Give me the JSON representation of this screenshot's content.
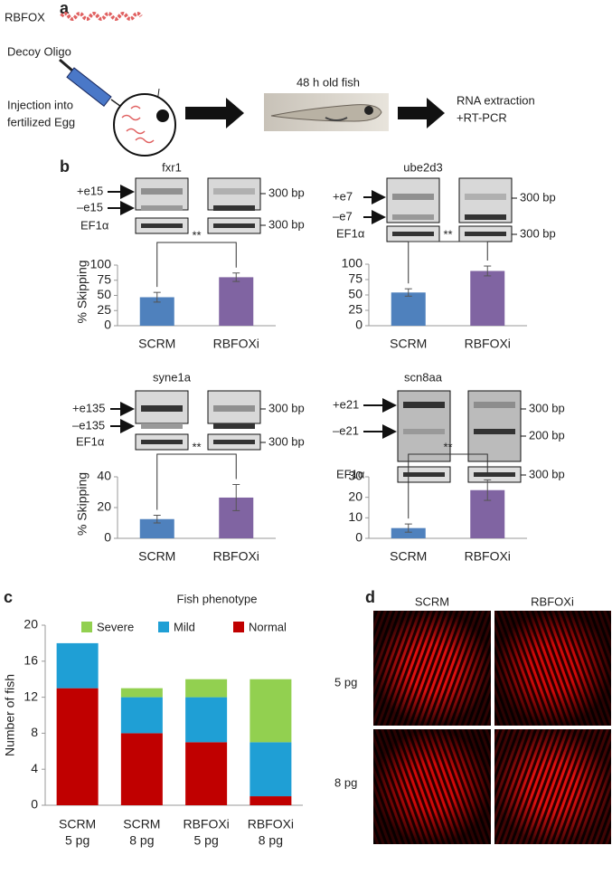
{
  "panel_labels": [
    "a",
    "b",
    "c",
    "d"
  ],
  "schematic": {
    "protein": "RBFOX",
    "oligo": "Decoy Oligo",
    "injection": [
      "Injection into",
      "fertilized Egg"
    ],
    "fish": "48 h old fish",
    "readout": [
      "RNA extraction",
      "+RT-PCR"
    ]
  },
  "gels": [
    {
      "upper": "+e15",
      "lower": "–e15",
      "control": "EF1α",
      "sizes": [
        "300 bp",
        "300 bp"
      ]
    },
    {
      "upper": "+e7",
      "lower": "–e7",
      "control": "EF1α",
      "sizes": [
        "300 bp",
        "300 bp"
      ]
    },
    {
      "upper": "+e135",
      "lower": "–e135",
      "control": "EF1α",
      "sizes": [
        "300 bp",
        "300 bp"
      ]
    },
    {
      "upper": "+e21",
      "lower": "–e21",
      "control": "EF1α",
      "sizes": [
        "300 bp",
        "200 bp",
        "300 bp"
      ]
    }
  ],
  "microscopy": {
    "columns": [
      "SCRM",
      "RBFOXi"
    ],
    "rows": [
      "5 pg",
      "8 pg"
    ]
  },
  "chart_data": [
    {
      "type": "bar",
      "title": "fxr1",
      "ylabel": "% Skipping",
      "categories": [
        "SCRM",
        "RBFOXi"
      ],
      "values": [
        47,
        80
      ],
      "errors": [
        8,
        7
      ],
      "colors": [
        "#4f81bd",
        "#8064a2"
      ],
      "ylim": [
        0,
        100
      ],
      "yticks": [
        0,
        25,
        50,
        75,
        100
      ],
      "annotation": "**"
    },
    {
      "type": "bar",
      "title": "ube2d3",
      "categories": [
        "SCRM",
        "RBFOXi"
      ],
      "values": [
        54,
        89
      ],
      "errors": [
        6,
        8
      ],
      "colors": [
        "#4f81bd",
        "#8064a2"
      ],
      "ylim": [
        0,
        100
      ],
      "yticks": [
        0,
        25,
        50,
        75,
        100
      ],
      "annotation": "**"
    },
    {
      "type": "bar",
      "title": "syne1a",
      "ylabel": "% Skipping",
      "categories": [
        "SCRM",
        "RBFOXi"
      ],
      "values": [
        12.5,
        26.5
      ],
      "errors": [
        2.5,
        8.5
      ],
      "colors": [
        "#4f81bd",
        "#8064a2"
      ],
      "ylim": [
        0,
        40
      ],
      "yticks": [
        0,
        20,
        40
      ],
      "annotation": "**"
    },
    {
      "type": "bar",
      "title": "scn8aa",
      "categories": [
        "SCRM",
        "RBFOXi"
      ],
      "values": [
        5,
        23.5
      ],
      "errors": [
        2,
        5
      ],
      "colors": [
        "#4f81bd",
        "#8064a2"
      ],
      "ylim": [
        0,
        30
      ],
      "yticks": [
        0,
        10,
        20,
        30
      ],
      "annotation": "**"
    },
    {
      "type": "stacked_bar",
      "title": "Fish phenotype",
      "ylabel": "Number of fish",
      "categories": [
        [
          "SCRM",
          "5 pg"
        ],
        [
          "SCRM",
          "8 pg"
        ],
        [
          "RBFOXi",
          "5 pg"
        ],
        [
          "RBFOXi",
          "8 pg"
        ]
      ],
      "series": [
        {
          "name": "Normal",
          "color": "#c00000",
          "values": [
            13,
            8,
            7,
            1
          ]
        },
        {
          "name": "Mild",
          "color": "#1f9fd5",
          "values": [
            5,
            4,
            5,
            6
          ]
        },
        {
          "name": "Severe",
          "color": "#92d050",
          "values": [
            0,
            1,
            2,
            7
          ]
        }
      ],
      "ylim": [
        0,
        20
      ],
      "yticks": [
        0,
        4,
        8,
        12,
        16,
        20
      ]
    }
  ]
}
